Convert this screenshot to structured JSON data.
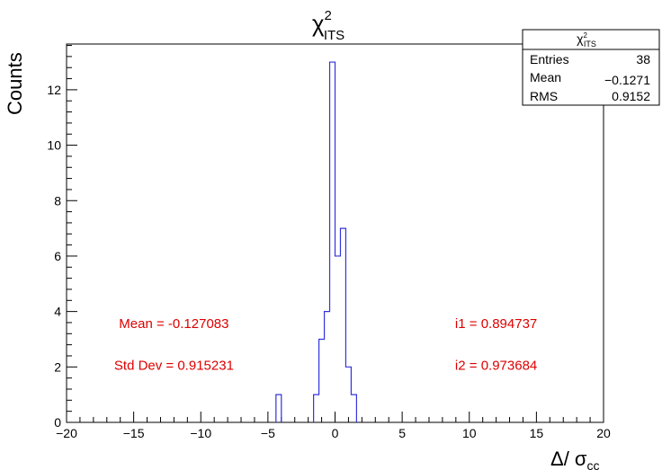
{
  "chart_data": {
    "type": "bar",
    "title": {
      "base": "χ",
      "sup": "2",
      "sub": "ITS"
    },
    "xlabel": {
      "base": "Δ/ σ",
      "sub": "cc"
    },
    "ylabel": "Counts",
    "xlim": [
      -20,
      20
    ],
    "ylim": [
      0,
      13.65
    ],
    "xticks": [
      -20,
      -15,
      -10,
      -5,
      0,
      5,
      10,
      15,
      20
    ],
    "xtick_labels": [
      "−20",
      "−15",
      "−10",
      "−5",
      "0",
      "5",
      "10",
      "15",
      "20"
    ],
    "yticks": [
      0,
      2,
      4,
      6,
      8,
      10,
      12
    ],
    "yticks_labels": [
      "0",
      "2",
      "4",
      "6",
      "8",
      "10",
      "12"
    ],
    "line_color": "#3333dd",
    "histogram": {
      "bins": [
        {
          "x0": -4.4,
          "x1": -4.0,
          "count": 1
        },
        {
          "x0": -1.6,
          "x1": -1.2,
          "count": 1
        },
        {
          "x0": -1.2,
          "x1": -0.8,
          "count": 3
        },
        {
          "x0": -0.8,
          "x1": -0.4,
          "count": 4
        },
        {
          "x0": -0.4,
          "x1": 0.0,
          "count": 13
        },
        {
          "x0": 0.0,
          "x1": 0.4,
          "count": 6
        },
        {
          "x0": 0.4,
          "x1": 0.8,
          "count": 7
        },
        {
          "x0": 0.8,
          "x1": 1.2,
          "count": 2
        },
        {
          "x0": 1.2,
          "x1": 1.6,
          "count": 1
        }
      ]
    },
    "stats_box": {
      "title": {
        "base": "χ",
        "sup": "2",
        "sub": "ITS"
      },
      "rows": [
        {
          "label": "Entries",
          "value": "38"
        },
        {
          "label": "Mean",
          "value": "−0.1271"
        },
        {
          "label": "RMS",
          "value": "0.9152"
        }
      ]
    },
    "annotations": [
      {
        "text": "Mean = -0.127083",
        "x": -12.0,
        "y": 3.4
      },
      {
        "text": "Std Dev = 0.915231",
        "x": -12.0,
        "y": 1.9
      },
      {
        "text": "i1 = 0.894737",
        "x": 12.0,
        "y": 3.4
      },
      {
        "text": "i2 = 0.973684",
        "x": 12.0,
        "y": 1.9
      }
    ],
    "annotation_color": "#dd0000"
  }
}
